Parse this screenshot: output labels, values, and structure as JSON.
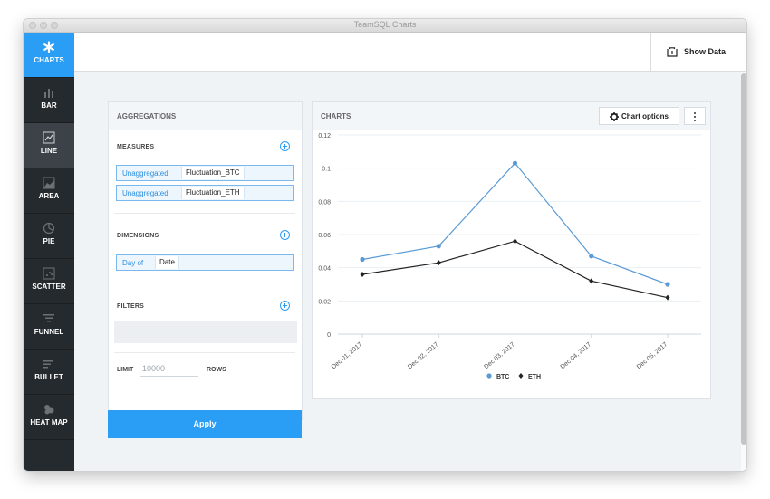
{
  "window": {
    "title": "TeamSQL Charts"
  },
  "sidebar": {
    "items": [
      {
        "label": "CHARTS",
        "icon": "asterisk-icon"
      },
      {
        "label": "BAR",
        "icon": "bar-chart-icon"
      },
      {
        "label": "LINE",
        "icon": "line-chart-icon"
      },
      {
        "label": "AREA",
        "icon": "area-chart-icon"
      },
      {
        "label": "PIE",
        "icon": "pie-chart-icon"
      },
      {
        "label": "SCATTER",
        "icon": "scatter-chart-icon"
      },
      {
        "label": "FUNNEL",
        "icon": "funnel-chart-icon"
      },
      {
        "label": "BULLET",
        "icon": "bullet-chart-icon"
      },
      {
        "label": "HEAT MAP",
        "icon": "heat-map-icon"
      }
    ]
  },
  "topbar": {
    "show_data_label": "Show Data",
    "show_data_icon": "show-data-icon"
  },
  "aggregations": {
    "title": "AGGREGATIONS",
    "measures_label": "MEASURES",
    "measures": [
      {
        "aggregation": "Unaggregated",
        "field": "Fluctuation_BTC"
      },
      {
        "aggregation": "Unaggregated",
        "field": "Fluctuation_ETH"
      }
    ],
    "dimensions_label": "DIMENSIONS",
    "dimensions": [
      {
        "aggregation": "Day of",
        "field": "Date"
      }
    ],
    "filters_label": "FILTERS",
    "limit_label": "LIMIT",
    "limit_placeholder": "10000",
    "rows_label": "ROWS",
    "apply_label": "Apply"
  },
  "charts": {
    "title": "CHARTS",
    "options_label": "Chart options",
    "options_icon": "gear-icon",
    "more_icon": "vertical-dots-icon"
  },
  "colors": {
    "accent": "#2a9df4",
    "sidebar": "#252a2e",
    "btc": "#5b9bd5",
    "eth": "#222222"
  },
  "chart_data": {
    "type": "line",
    "categories": [
      "Dec 01, 2017",
      "Dec 02, 2017",
      "Dec 03, 2017",
      "Dec 04, 2017",
      "Dec 05, 2017"
    ],
    "series": [
      {
        "name": "BTC",
        "values": [
          0.045,
          0.053,
          0.103,
          0.047,
          0.03
        ],
        "color": "#5b9bd5",
        "marker": "circle"
      },
      {
        "name": "ETH",
        "values": [
          0.036,
          0.043,
          0.056,
          0.032,
          0.022
        ],
        "color": "#222222",
        "marker": "diamond"
      }
    ],
    "yticks": [
      "0",
      "0.02",
      "0.04",
      "0.06",
      "0.08",
      "0.1",
      "0.12"
    ],
    "ylim": [
      0,
      0.12
    ],
    "grid": true,
    "legend_position": "bottom"
  }
}
